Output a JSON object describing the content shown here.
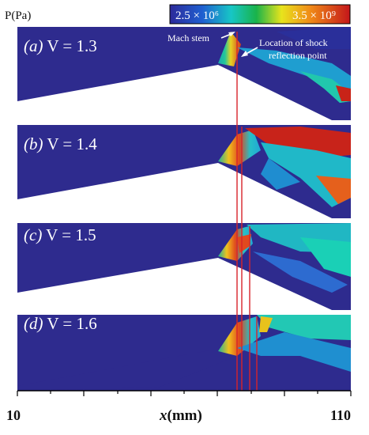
{
  "colorbar": {
    "unit_label": "P(Pa)",
    "min_label": "2.5 × 10⁶",
    "max_label": "3.5 × 10⁹"
  },
  "annotations": {
    "mach_stem": "Mach stem",
    "reflection_line1": "Location of shock",
    "reflection_line2": "reflection point"
  },
  "panels": [
    {
      "tag": "(a)",
      "text": " V = 1.3"
    },
    {
      "tag": "(b)",
      "text": " V = 1.4"
    },
    {
      "tag": "(c)",
      "text": " V = 1.5"
    },
    {
      "tag": "(d)",
      "text": " V = 1.6"
    }
  ],
  "axis": {
    "min_label": "10",
    "max_label": "110",
    "label_var": "x",
    "label_unit": "(mm)"
  }
}
